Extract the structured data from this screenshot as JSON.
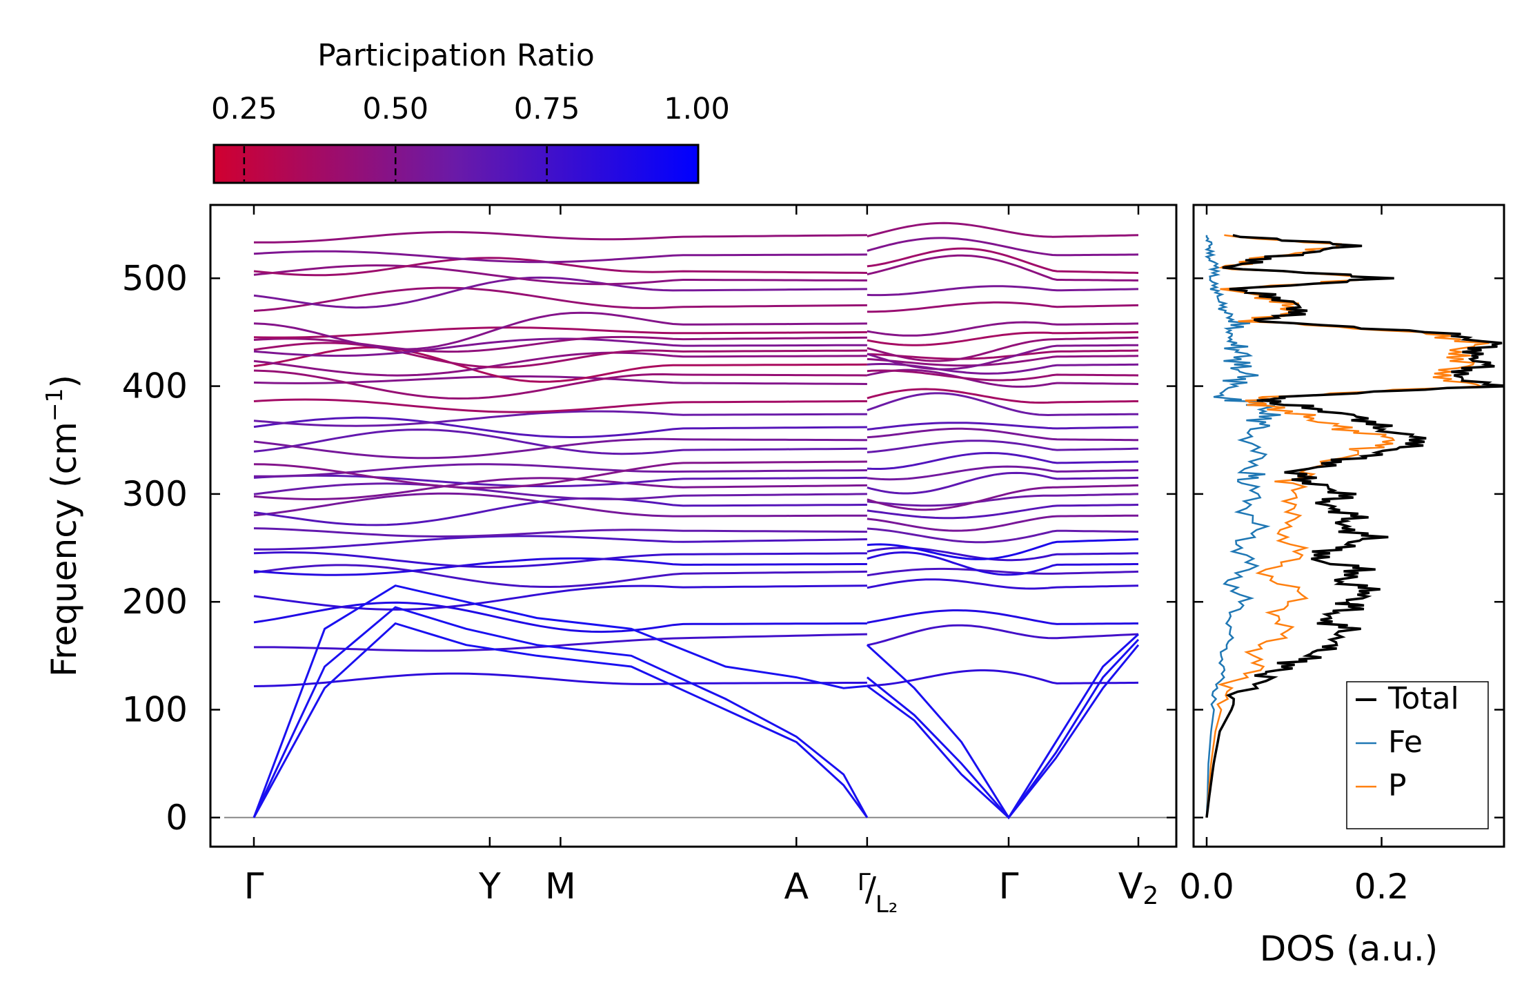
{
  "chart_data": [
    {
      "type": "line",
      "name": "phonon band structure",
      "ylabel": "Frequency (cm⁻¹)",
      "ylabel_main": "Frequency (cm",
      "ylabel_sup": "−1",
      "ylabel_close": ")",
      "ylim": [
        -27,
        568
      ],
      "yticks": [
        0,
        100,
        200,
        300,
        400,
        500
      ],
      "ytick_labels": [
        "0",
        "100",
        "200",
        "300",
        "400",
        "500"
      ],
      "kpath_positions": [
        0.0,
        1.0,
        1.3,
        2.3,
        2.6,
        3.2,
        3.75
      ],
      "kpath_labels": [
        "Γ",
        "Y",
        "M",
        "A",
        "Γ/L₂",
        "Γ",
        "V₂"
      ],
      "label_top": "Γ",
      "label_slash": "/",
      "label_bottom": "L₂",
      "label_v2_main": "V",
      "label_v2_sub": "2",
      "segments": [
        [
          0.0,
          2.6
        ],
        [
          2.6,
          3.75
        ]
      ],
      "zero_line": 0,
      "acoustic_branches": [
        {
          "segment": 0,
          "k": [
            0.0,
            0.3,
            0.6,
            0.9,
            1.2,
            1.6,
            2.0,
            2.3,
            2.5,
            2.6
          ],
          "freq": [
            0,
            120,
            180,
            160,
            150,
            140,
            100,
            70,
            30,
            0
          ]
        },
        {
          "segment": 0,
          "k": [
            0.0,
            0.3,
            0.6,
            0.9,
            1.2,
            1.6,
            2.0,
            2.3,
            2.5,
            2.6
          ],
          "freq": [
            0,
            140,
            195,
            175,
            160,
            150,
            110,
            75,
            40,
            0
          ]
        },
        {
          "segment": 0,
          "k": [
            0.0,
            0.3,
            0.6,
            0.9,
            1.2,
            1.6,
            2.0,
            2.3,
            2.5,
            2.6
          ],
          "freq": [
            0,
            175,
            215,
            200,
            185,
            175,
            140,
            130,
            120,
            122
          ]
        },
        {
          "segment": 1,
          "k": [
            2.6,
            2.8,
            3.0,
            3.2,
            3.4,
            3.6,
            3.75
          ],
          "freq": [
            122,
            90,
            40,
            0,
            55,
            120,
            160
          ]
        },
        {
          "segment": 1,
          "k": [
            2.6,
            2.8,
            3.0,
            3.2,
            3.4,
            3.6,
            3.75
          ],
          "freq": [
            130,
            95,
            50,
            0,
            60,
            130,
            165
          ]
        },
        {
          "segment": 1,
          "k": [
            2.6,
            2.8,
            3.0,
            3.2,
            3.4,
            3.6,
            3.75
          ],
          "freq": [
            160,
            120,
            70,
            0,
            70,
            140,
            170
          ]
        }
      ],
      "optical_band_freqs_gamma": [
        123,
        158,
        178,
        210,
        222,
        233,
        242,
        250,
        268,
        278,
        287,
        295,
        302,
        312,
        318,
        326,
        338,
        352,
        358,
        372,
        383,
        405,
        412,
        418,
        426,
        430,
        436,
        440,
        447,
        455,
        470,
        486,
        500,
        510,
        520,
        535
      ],
      "optical_band_freqs_end": [
        125,
        170,
        180,
        215,
        228,
        235,
        245,
        258,
        265,
        280,
        290,
        300,
        308,
        315,
        322,
        330,
        342,
        350,
        362,
        374,
        386,
        402,
        410,
        420,
        428,
        433,
        438,
        445,
        450,
        458,
        475,
        490,
        498,
        505,
        522,
        540
      ],
      "colorbar": {
        "title": "Participation Ratio",
        "range": [
          0.2,
          1.0
        ],
        "ticks": [
          0.25,
          0.5,
          0.75,
          1.0
        ],
        "tick_labels": [
          "0.25",
          "0.50",
          "0.75",
          "1.00"
        ],
        "color_low": "#d00030",
        "color_mid": "#6a1aa8",
        "color_high": "#0000ff"
      }
    },
    {
      "type": "line",
      "name": "density of states",
      "xlabel": "DOS (a.u.)",
      "xlim": [
        -0.015,
        0.34
      ],
      "xticks": [
        0.0,
        0.2
      ],
      "xtick_labels": [
        "0.0",
        "0.2"
      ],
      "ylim": [
        -27,
        568
      ],
      "legend_position": "lower-right",
      "series": [
        {
          "name": "Total",
          "color": "#000000",
          "freq": [
            0,
            20,
            50,
            80,
            110,
            130,
            140,
            150,
            160,
            175,
            185,
            195,
            200,
            210,
            220,
            230,
            240,
            250,
            260,
            270,
            280,
            290,
            300,
            310,
            320,
            330,
            340,
            350,
            360,
            370,
            380,
            385,
            390,
            400,
            410,
            420,
            430,
            440,
            450,
            460,
            470,
            480,
            490,
            500,
            510,
            520,
            530,
            540
          ],
          "dos": [
            0.0,
            0.003,
            0.008,
            0.015,
            0.035,
            0.06,
            0.09,
            0.12,
            0.14,
            0.16,
            0.13,
            0.17,
            0.16,
            0.19,
            0.15,
            0.18,
            0.12,
            0.15,
            0.19,
            0.15,
            0.17,
            0.13,
            0.16,
            0.12,
            0.1,
            0.15,
            0.21,
            0.25,
            0.2,
            0.18,
            0.12,
            0.07,
            0.08,
            0.33,
            0.28,
            0.32,
            0.3,
            0.33,
            0.26,
            0.06,
            0.11,
            0.09,
            0.03,
            0.21,
            0.02,
            0.08,
            0.17,
            0.03
          ]
        },
        {
          "name": "Fe",
          "color": "#1f77b4",
          "freq": [
            0,
            20,
            50,
            80,
            110,
            130,
            150,
            170,
            190,
            210,
            230,
            250,
            270,
            290,
            310,
            320,
            340,
            360,
            370,
            380,
            385,
            390,
            400,
            410,
            420,
            430,
            440,
            450,
            460,
            470,
            480,
            490,
            500,
            510,
            520,
            530,
            540
          ],
          "dos": [
            0.0,
            0.001,
            0.002,
            0.005,
            0.01,
            0.015,
            0.02,
            0.025,
            0.03,
            0.035,
            0.04,
            0.045,
            0.05,
            0.055,
            0.04,
            0.055,
            0.05,
            0.06,
            0.065,
            0.07,
            0.055,
            0.01,
            0.03,
            0.045,
            0.035,
            0.04,
            0.03,
            0.025,
            0.035,
            0.02,
            0.015,
            0.01,
            0.005,
            0.012,
            0.002,
            0.004,
            0.0
          ]
        },
        {
          "name": "P",
          "color": "#ff7f0e",
          "freq": [
            0,
            20,
            50,
            80,
            110,
            130,
            150,
            170,
            190,
            210,
            230,
            250,
            270,
            290,
            310,
            320,
            340,
            350,
            360,
            370,
            380,
            385,
            390,
            400,
            410,
            420,
            430,
            440,
            450,
            460,
            470,
            480,
            490,
            500,
            510,
            520,
            530,
            540
          ],
          "dos": [
            0.0,
            0.002,
            0.005,
            0.01,
            0.02,
            0.04,
            0.06,
            0.08,
            0.09,
            0.1,
            0.07,
            0.11,
            0.08,
            0.11,
            0.09,
            0.12,
            0.17,
            0.22,
            0.16,
            0.12,
            0.08,
            0.05,
            0.07,
            0.31,
            0.26,
            0.3,
            0.28,
            0.31,
            0.24,
            0.05,
            0.1,
            0.08,
            0.02,
            0.2,
            0.015,
            0.07,
            0.16,
            0.02
          ]
        }
      ]
    }
  ]
}
